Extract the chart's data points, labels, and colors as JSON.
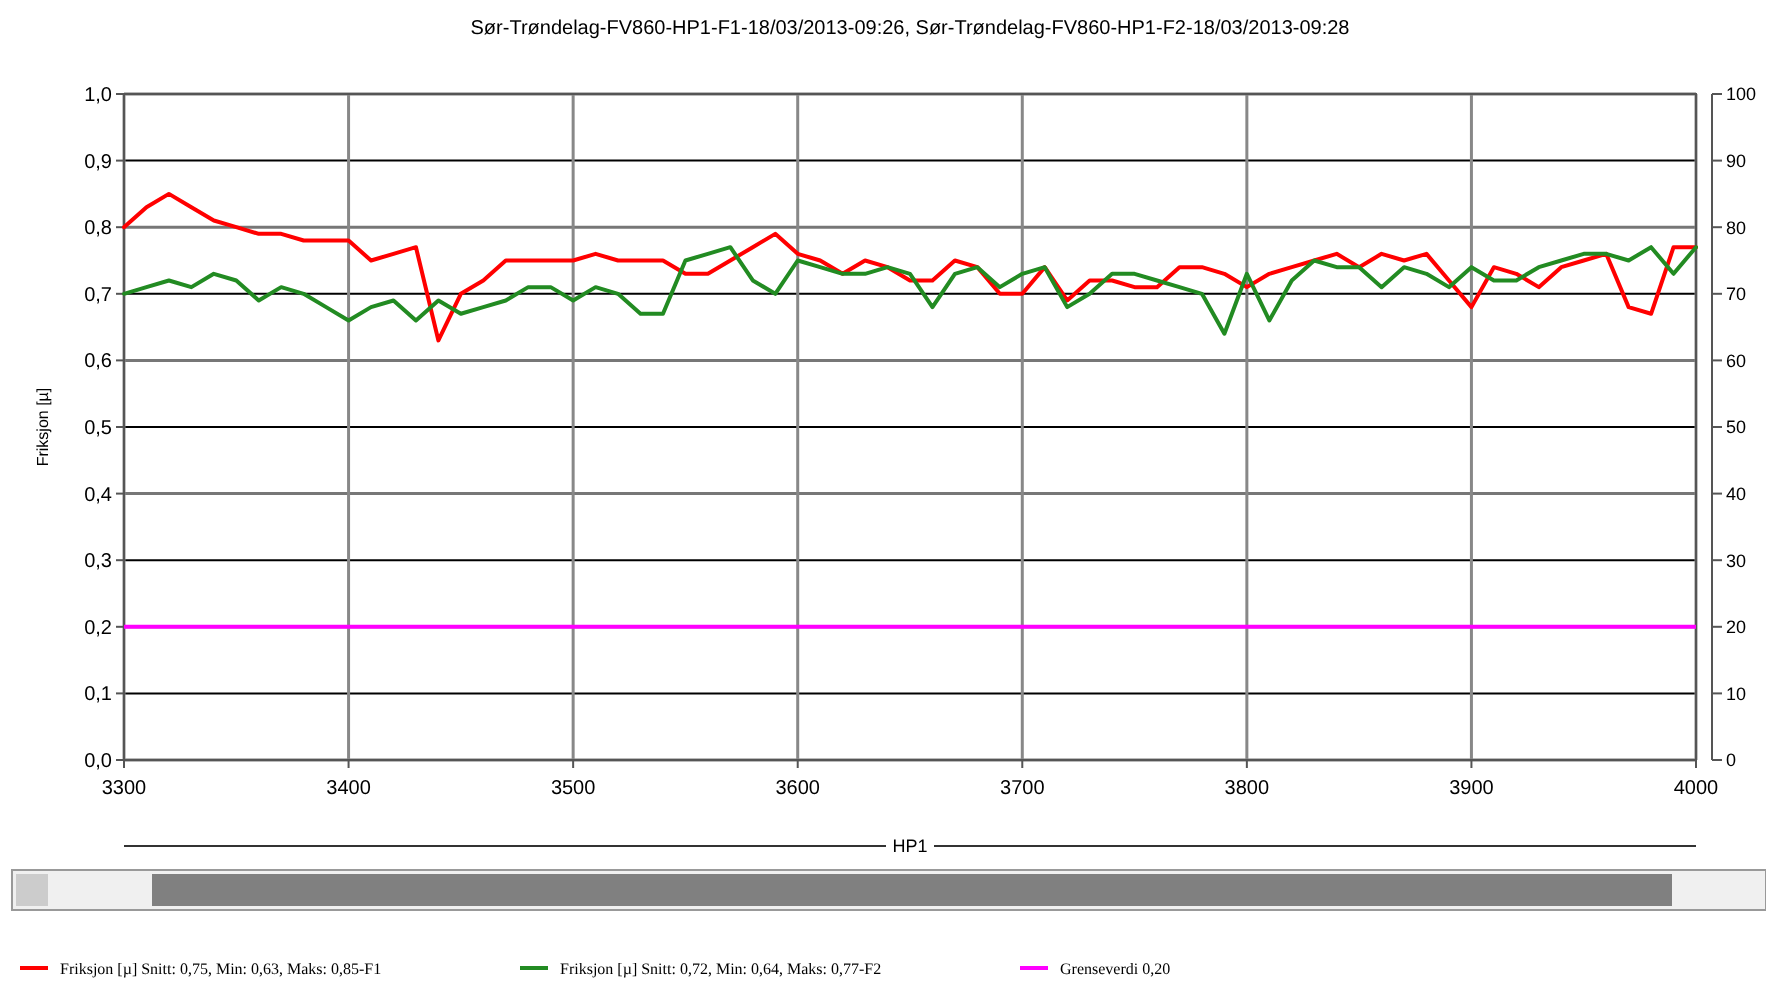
{
  "chart_data": {
    "type": "line",
    "title": "Sør-Trøndelag-FV860-HP1-F1-18/03/2013-09:26, Sør-Trøndelag-FV860-HP1-F2-18/03/2013-09:28",
    "xlabel": "HP1",
    "ylabel": "Friksjon [µ]",
    "x": [
      3300,
      3310,
      3320,
      3330,
      3340,
      3350,
      3360,
      3370,
      3380,
      3390,
      3400,
      3410,
      3420,
      3430,
      3440,
      3450,
      3460,
      3470,
      3480,
      3490,
      3500,
      3510,
      3520,
      3530,
      3540,
      3550,
      3560,
      3570,
      3580,
      3590,
      3600,
      3610,
      3620,
      3630,
      3640,
      3650,
      3660,
      3670,
      3680,
      3690,
      3700,
      3710,
      3720,
      3730,
      3740,
      3750,
      3760,
      3770,
      3780,
      3790,
      3800,
      3810,
      3820,
      3830,
      3840,
      3850,
      3860,
      3870,
      3880,
      3890,
      3900,
      3910,
      3920,
      3930,
      3940,
      3950,
      3960,
      3970,
      3980,
      3990,
      4000
    ],
    "series": [
      {
        "name": "Friksjon [µ] Snitt: 0,75, Min: 0,63, Maks: 0,85-F1",
        "color": "#ff0000",
        "values": [
          0.8,
          0.83,
          0.85,
          0.83,
          0.81,
          0.8,
          0.79,
          0.79,
          0.78,
          0.78,
          0.78,
          0.75,
          0.76,
          0.77,
          0.63,
          0.7,
          0.72,
          0.75,
          0.75,
          0.75,
          0.75,
          0.76,
          0.75,
          0.75,
          0.75,
          0.73,
          0.73,
          0.75,
          0.77,
          0.79,
          0.76,
          0.75,
          0.73,
          0.75,
          0.74,
          0.72,
          0.72,
          0.75,
          0.74,
          0.7,
          0.7,
          0.74,
          0.69,
          0.72,
          0.72,
          0.71,
          0.71,
          0.74,
          0.74,
          0.73,
          0.71,
          0.73,
          0.74,
          0.75,
          0.76,
          0.74,
          0.76,
          0.75,
          0.76,
          0.72,
          0.68,
          0.74,
          0.73,
          0.71,
          0.74,
          0.75,
          0.76,
          0.68,
          0.67,
          0.77,
          0.77
        ]
      },
      {
        "name": "Friksjon [µ] Snitt: 0,72, Min: 0,64, Maks: 0,77-F2",
        "color": "#228b22",
        "values": [
          0.7,
          0.71,
          0.72,
          0.71,
          0.73,
          0.72,
          0.69,
          0.71,
          0.7,
          0.68,
          0.66,
          0.68,
          0.69,
          0.66,
          0.69,
          0.67,
          0.68,
          0.69,
          0.71,
          0.71,
          0.69,
          0.71,
          0.7,
          0.67,
          0.67,
          0.75,
          0.76,
          0.77,
          0.72,
          0.7,
          0.75,
          0.74,
          0.73,
          0.73,
          0.74,
          0.73,
          0.68,
          0.73,
          0.74,
          0.71,
          0.73,
          0.74,
          0.68,
          0.7,
          0.73,
          0.73,
          0.72,
          0.71,
          0.7,
          0.64,
          0.73,
          0.66,
          0.72,
          0.75,
          0.74,
          0.74,
          0.71,
          0.74,
          0.73,
          0.71,
          0.74,
          0.72,
          0.72,
          0.74,
          0.75,
          0.76,
          0.76,
          0.75,
          0.77,
          0.73,
          0.77
        ]
      }
    ],
    "ref_lines": [
      {
        "axis": "y",
        "value": 0.2,
        "label": "Grenseverdi 0,20",
        "color": "#ff00ff"
      }
    ],
    "xlim": [
      3300,
      4000
    ],
    "xticks": [
      3300,
      3400,
      3500,
      3600,
      3700,
      3800,
      3900,
      4000
    ],
    "ylim": [
      0,
      1
    ],
    "yticks": [
      {
        "value": 0,
        "label": "0,0"
      },
      {
        "value": 0.1,
        "label": "0,1"
      },
      {
        "value": 0.2,
        "label": "0,2"
      },
      {
        "value": 0.3,
        "label": "0,3"
      },
      {
        "value": 0.4,
        "label": "0,4"
      },
      {
        "value": 0.5,
        "label": "0,5"
      },
      {
        "value": 0.6,
        "label": "0,6"
      },
      {
        "value": 0.7,
        "label": "0,7"
      },
      {
        "value": 0.8,
        "label": "0,8"
      },
      {
        "value": 0.9,
        "label": "0,9"
      },
      {
        "value": 1,
        "label": "1,0"
      }
    ],
    "y2lim": [
      0,
      100
    ],
    "y2ticks": [
      0,
      10,
      20,
      30,
      40,
      50,
      60,
      70,
      80,
      90,
      100
    ],
    "grid": true,
    "legend": "bottom",
    "marker": "none",
    "line_style": "solid"
  }
}
